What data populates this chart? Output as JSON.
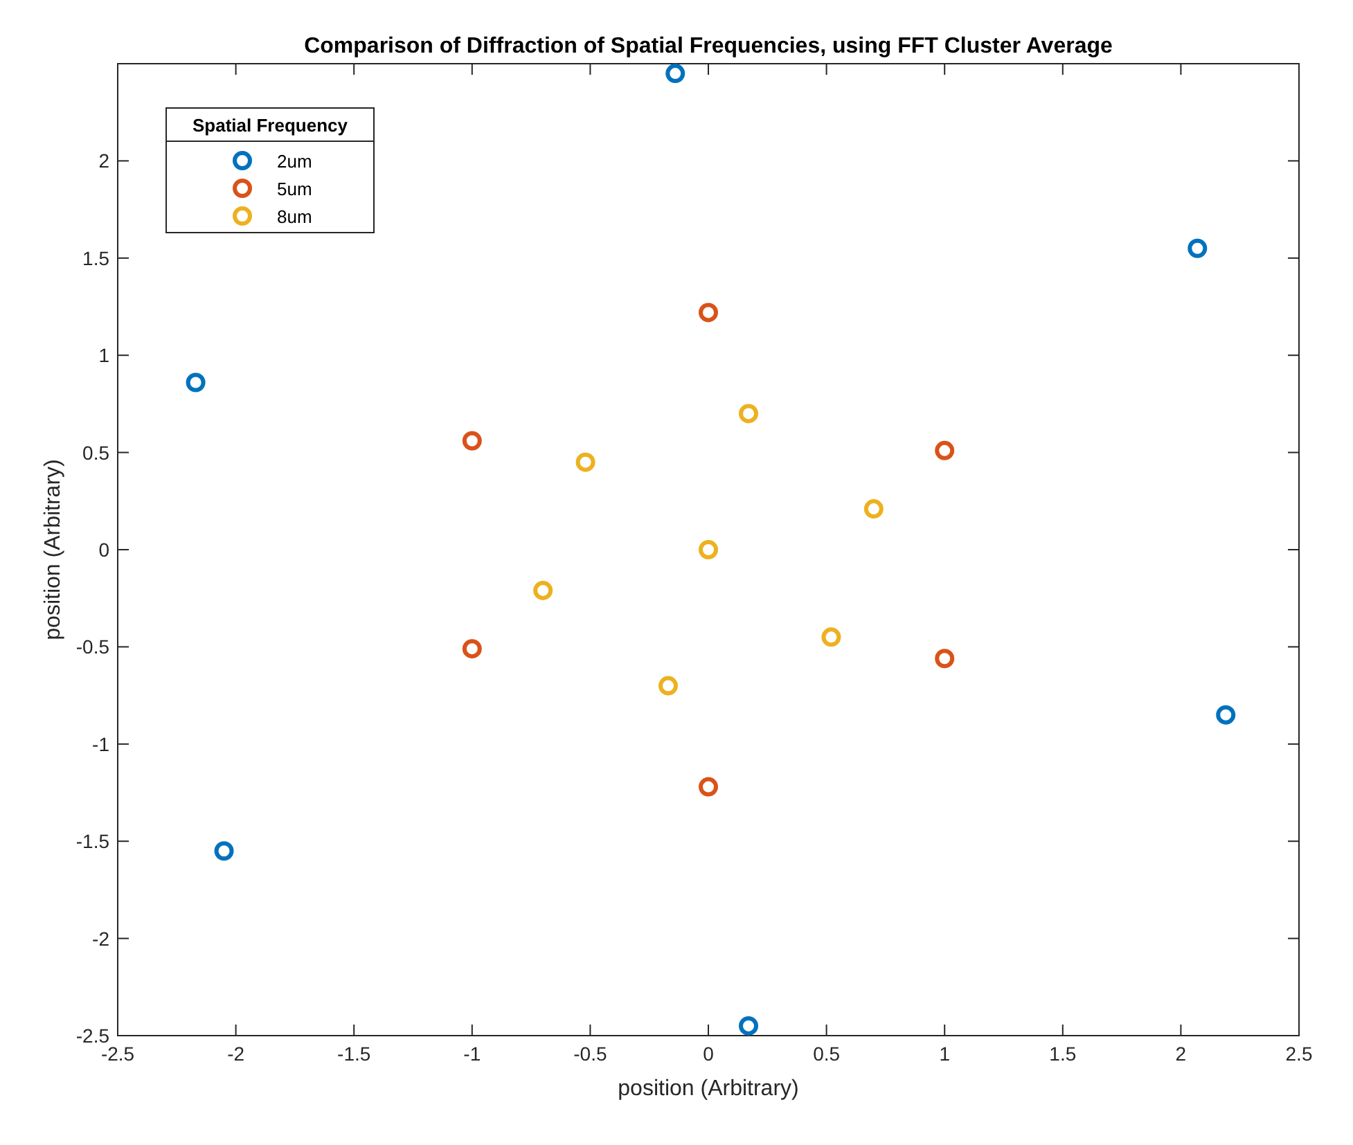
{
  "chart_data": {
    "type": "scatter",
    "title": "Comparison of Diffraction of Spatial Frequencies, using FFT Cluster Average",
    "xlabel": "position (Arbitrary)",
    "ylabel": "position (Arbitrary)",
    "legend_title": "Spatial Frequency",
    "legend": "top left",
    "marker": "circle",
    "grid": false,
    "xlim": [
      -2.5,
      2.5
    ],
    "xticks": [
      -2.5,
      -2,
      -1.5,
      -1,
      -0.5,
      0,
      0.5,
      1,
      1.5,
      2,
      2.5
    ],
    "ylim": [
      -2.5,
      2.5
    ],
    "yticks": [
      -2.5,
      -2,
      -1.5,
      -1,
      -0.5,
      0,
      0.5,
      1,
      1.5,
      2
    ],
    "series": [
      {
        "name": "2um",
        "color": "#0072bd",
        "x": [
          -0.14,
          2.07,
          -2.17,
          2.19,
          -2.05,
          0.17
        ],
        "values": [
          2.45,
          1.55,
          0.86,
          -0.85,
          -1.55,
          -2.45
        ]
      },
      {
        "name": "5um",
        "color": "#d95319",
        "x": [
          0,
          -1,
          1,
          -1,
          1,
          0
        ],
        "values": [
          1.22,
          0.56,
          0.51,
          -0.51,
          -0.56,
          -1.22
        ]
      },
      {
        "name": "8um",
        "color": "#edb120",
        "x": [
          0.17,
          -0.52,
          0.7,
          0,
          -0.7,
          0.52,
          -0.17
        ],
        "values": [
          0.7,
          0.45,
          0.21,
          0,
          -0.21,
          -0.45,
          -0.7
        ]
      }
    ]
  }
}
